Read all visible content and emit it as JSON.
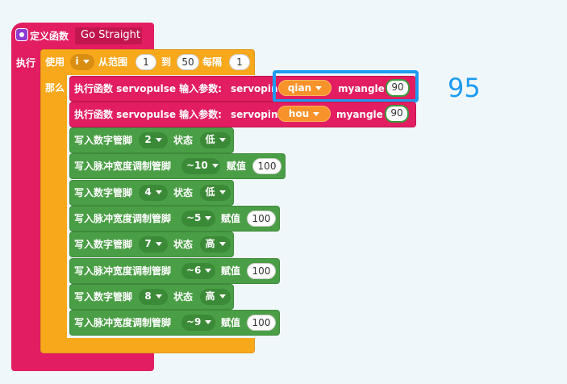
{
  "define_block": {
    "label": "定义函数",
    "name": "Go Straight",
    "exec_label": "执行"
  },
  "for_loop": {
    "use_label": "使用",
    "var": "i",
    "from_label": "从范围",
    "from": "1",
    "to_label": "到",
    "to": "50",
    "step_label": "每隔",
    "step": "1",
    "then_label": "那么"
  },
  "calls": [
    {
      "label": "执行函数 servopulse 输入参数:",
      "param1": "servopin",
      "pin": "qian",
      "param2": "myangle",
      "angle": "90"
    },
    {
      "label": "执行函数 servopulse 输入参数:",
      "param1": "servopin",
      "pin": "hou",
      "param2": "myangle",
      "angle": "90"
    }
  ],
  "green_blocks": [
    {
      "type": "digital",
      "label": "写入数字管脚",
      "pin": "2",
      "state_label": "状态",
      "state": "低"
    },
    {
      "type": "pwm",
      "label": "写入脉冲宽度调制管脚",
      "pin": "~10",
      "value_label": "赋值",
      "value": "100"
    },
    {
      "type": "digital",
      "label": "写入数字管脚",
      "pin": "4",
      "state_label": "状态",
      "state": "低"
    },
    {
      "type": "pwm",
      "label": "写入脉冲宽度调制管脚",
      "pin": "~5",
      "value_label": "赋值",
      "value": "100"
    },
    {
      "type": "digital",
      "label": "写入数字管脚",
      "pin": "7",
      "state_label": "状态",
      "state": "高"
    },
    {
      "type": "pwm",
      "label": "写入脉冲宽度调制管脚",
      "pin": "~6",
      "value_label": "赋值",
      "value": "100"
    },
    {
      "type": "digital",
      "label": "写入数字管脚",
      "pin": "8",
      "state_label": "状态",
      "state": "高"
    },
    {
      "type": "pwm",
      "label": "写入脉冲宽度调制管脚",
      "pin": "~9",
      "value_label": "赋值",
      "value": "100"
    }
  ],
  "value_readout": "95",
  "colors": {
    "define": "#e21d61",
    "loop": "#f8a81b",
    "io": "#4a9e45",
    "pin_dropdown": "#f8922a",
    "highlight": "#1e9bf0"
  }
}
